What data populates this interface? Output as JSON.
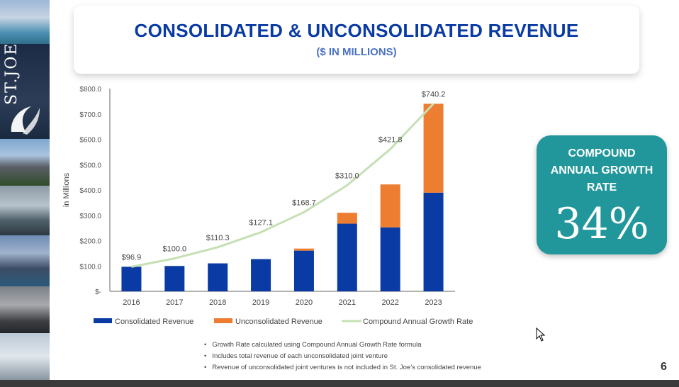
{
  "header": {
    "title": "CONSOLIDATED & UNCONSOLIDATED REVENUE",
    "subtitle": "($ IN MILLIONS)"
  },
  "sidebar": {
    "logo_text": "ST.JOE"
  },
  "chart_data": {
    "type": "bar",
    "stacked": true,
    "categories": [
      "2016",
      "2017",
      "2018",
      "2019",
      "2020",
      "2021",
      "2022",
      "2023"
    ],
    "series": [
      {
        "name": "Consolidated Revenue",
        "color": "#0a3aa3",
        "values": [
          96.9,
          100.0,
          110.3,
          127.1,
          160.4,
          267.0,
          252.4,
          389.3
        ]
      },
      {
        "name": "Unconsolidated Revenue",
        "color": "#ed7d31",
        "values": [
          0,
          0,
          0,
          0,
          8.3,
          43.0,
          169.4,
          350.9
        ]
      }
    ],
    "totals_labels": [
      "$96.9",
      "$100.0",
      "$110.3",
      "$127.1",
      "$168.7",
      "$310.0",
      "$421.8",
      "$740.2"
    ],
    "line": {
      "name": "Compound Annual Growth Rate",
      "color": "#c5e0b4",
      "values": [
        96.9,
        129.8,
        174.0,
        233.1,
        312.4,
        418.6,
        561.0,
        740.2
      ]
    },
    "ylabel": "in Millions",
    "ylim": [
      0,
      800
    ],
    "ytick_values": [
      0,
      100,
      200,
      300,
      400,
      500,
      600,
      700,
      800
    ],
    "ytick_labels": [
      "$-",
      "$100.0",
      "$200.0",
      "$300.0",
      "$400.0",
      "$500.0",
      "$600.0",
      "$700.0",
      "$800.0"
    ],
    "legend_position": "bottom"
  },
  "cagr": {
    "label": "COMPOUND ANNUAL GROWTH RATE",
    "value": "34%"
  },
  "notes": [
    "Growth Rate calculated using Compound Annual Growth Rate formula",
    "Includes total revenue of each unconsolidated joint venture",
    "Revenue of unconsolidated joint ventures is not included in St. Joe’s consolidated revenue"
  ],
  "page_number": "6"
}
